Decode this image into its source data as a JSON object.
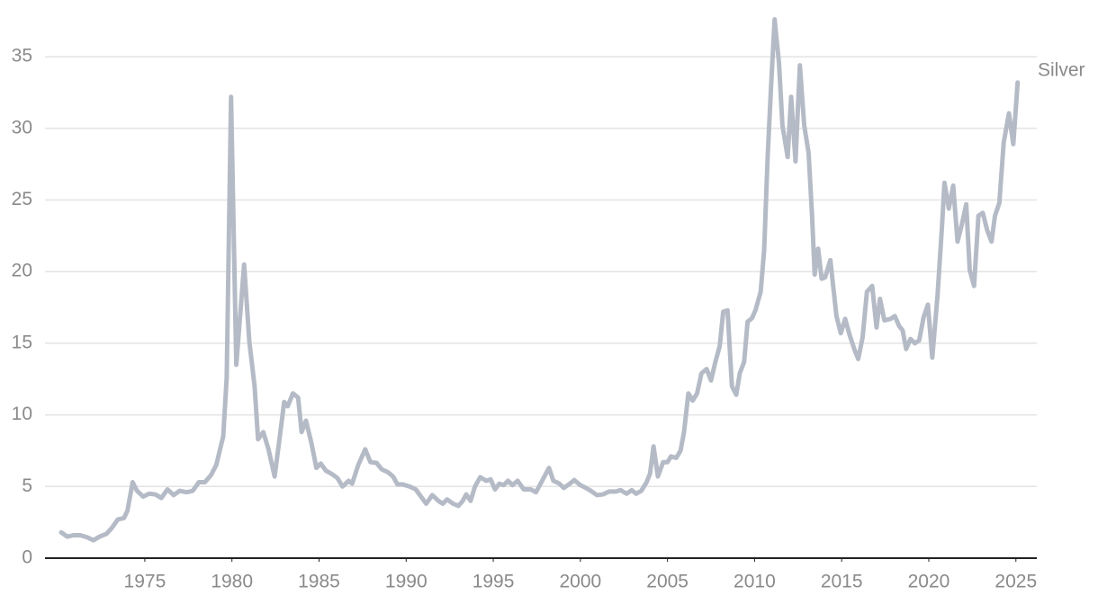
{
  "chart_data": {
    "type": "line",
    "x": [
      1970.2,
      1970.55,
      1970.9,
      1971.3,
      1971.7,
      1972.05,
      1972.4,
      1972.8,
      1973.1,
      1973.45,
      1973.8,
      1974.0,
      1974.3,
      1974.55,
      1974.9,
      1975.25,
      1975.6,
      1975.95,
      1976.3,
      1976.65,
      1977.0,
      1977.4,
      1977.75,
      1978.1,
      1978.45,
      1978.8,
      1979.1,
      1979.5,
      1979.7,
      1979.95,
      1980.25,
      1980.7,
      1981.0,
      1981.3,
      1981.5,
      1981.8,
      1982.1,
      1982.45,
      1982.75,
      1983.0,
      1983.2,
      1983.5,
      1983.8,
      1984.0,
      1984.25,
      1984.55,
      1984.85,
      1985.1,
      1985.4,
      1985.7,
      1986.05,
      1986.35,
      1986.7,
      1986.9,
      1987.25,
      1987.65,
      1987.95,
      1988.3,
      1988.6,
      1988.95,
      1989.25,
      1989.5,
      1989.8,
      1990.2,
      1990.55,
      1990.85,
      1991.15,
      1991.5,
      1991.85,
      1992.1,
      1992.35,
      1992.7,
      1993.0,
      1993.25,
      1993.45,
      1993.7,
      1993.95,
      1994.25,
      1994.6,
      1994.85,
      1995.1,
      1995.35,
      1995.6,
      1995.85,
      1996.1,
      1996.4,
      1996.75,
      1997.15,
      1997.45,
      1997.85,
      1998.2,
      1998.45,
      1998.8,
      1999.05,
      1999.4,
      1999.65,
      2000.0,
      2000.25,
      2000.6,
      2000.95,
      2001.3,
      2001.65,
      2002.05,
      2002.3,
      2002.65,
      2002.95,
      2003.2,
      2003.5,
      2003.8,
      2004.0,
      2004.2,
      2004.45,
      2004.75,
      2005.0,
      2005.2,
      2005.5,
      2005.75,
      2005.95,
      2006.2,
      2006.45,
      2006.7,
      2006.95,
      2007.25,
      2007.5,
      2007.75,
      2008.0,
      2008.2,
      2008.45,
      2008.7,
      2008.95,
      2009.15,
      2009.4,
      2009.6,
      2009.85,
      2010.05,
      2010.35,
      2010.55,
      2010.75,
      2010.95,
      2011.15,
      2011.4,
      2011.6,
      2011.9,
      2012.1,
      2012.35,
      2012.6,
      2012.85,
      2013.1,
      2013.3,
      2013.45,
      2013.65,
      2013.85,
      2014.05,
      2014.35,
      2014.7,
      2014.95,
      2015.2,
      2015.45,
      2015.75,
      2015.95,
      2016.2,
      2016.45,
      2016.75,
      2017.0,
      2017.2,
      2017.45,
      2017.8,
      2018.05,
      2018.3,
      2018.5,
      2018.7,
      2018.95,
      2019.2,
      2019.45,
      2019.7,
      2019.95,
      2020.2,
      2020.5,
      2020.75,
      2020.9,
      2021.15,
      2021.4,
      2021.65,
      2021.9,
      2022.15,
      2022.35,
      2022.6,
      2022.85,
      2023.1,
      2023.35,
      2023.6,
      2023.8,
      2024.05,
      2024.3,
      2024.6,
      2024.85,
      2025.1
    ],
    "series": [
      {
        "name": "Silver",
        "color": "#b5bbc6",
        "values": [
          1.8,
          1.5,
          1.6,
          1.6,
          1.45,
          1.25,
          1.5,
          1.7,
          2.1,
          2.7,
          2.8,
          3.3,
          5.3,
          4.7,
          4.3,
          4.5,
          4.45,
          4.2,
          4.8,
          4.4,
          4.7,
          4.6,
          4.7,
          5.3,
          5.3,
          5.8,
          6.5,
          8.5,
          12.6,
          32.2,
          13.5,
          20.5,
          15.1,
          12.0,
          8.3,
          8.8,
          7.6,
          5.7,
          8.5,
          10.9,
          10.6,
          11.5,
          11.2,
          8.8,
          9.6,
          8.1,
          6.3,
          6.6,
          6.1,
          5.9,
          5.6,
          5.0,
          5.4,
          5.2,
          6.5,
          7.6,
          6.7,
          6.65,
          6.2,
          6.0,
          5.7,
          5.15,
          5.15,
          5.0,
          4.8,
          4.3,
          3.8,
          4.4,
          4.0,
          3.8,
          4.1,
          3.8,
          3.65,
          4.0,
          4.45,
          4.0,
          5.0,
          5.65,
          5.4,
          5.5,
          4.8,
          5.2,
          5.1,
          5.4,
          5.1,
          5.4,
          4.8,
          4.8,
          4.6,
          5.5,
          6.3,
          5.4,
          5.2,
          4.9,
          5.2,
          5.45,
          5.1,
          4.95,
          4.7,
          4.4,
          4.45,
          4.65,
          4.65,
          4.75,
          4.5,
          4.75,
          4.5,
          4.7,
          5.3,
          5.9,
          7.8,
          5.7,
          6.7,
          6.7,
          7.1,
          7.0,
          7.5,
          8.8,
          11.5,
          11.0,
          11.5,
          12.9,
          13.2,
          12.4,
          13.7,
          14.8,
          17.2,
          17.3,
          12.0,
          11.4,
          12.9,
          13.7,
          16.5,
          16.75,
          17.3,
          18.6,
          21.5,
          28.0,
          33.0,
          37.6,
          34.6,
          30.2,
          28.0,
          32.2,
          27.7,
          34.4,
          30.2,
          28.3,
          23.9,
          19.8,
          21.6,
          19.5,
          19.6,
          20.8,
          16.9,
          15.7,
          16.7,
          15.6,
          14.5,
          13.9,
          15.4,
          18.6,
          19.0,
          16.1,
          18.1,
          16.6,
          16.7,
          16.9,
          16.2,
          15.9,
          14.6,
          15.3,
          15.0,
          15.2,
          16.8,
          17.7,
          14.0,
          18.3,
          23.0,
          26.2,
          24.4,
          26.0,
          22.1,
          23.3,
          24.7,
          20.1,
          19.0,
          23.9,
          24.1,
          22.9,
          22.1,
          23.9,
          24.8,
          29.0,
          31.05,
          28.9,
          33.2
        ]
      }
    ],
    "xlim": [
      1969.27,
      2026.2
    ],
    "xticks": [
      1975,
      1980,
      1985,
      1990,
      1995,
      2000,
      2005,
      2010,
      2015,
      2020,
      2025
    ],
    "ylim": [
      0,
      38
    ],
    "yticks": [
      0,
      5,
      10,
      15,
      20,
      25,
      30,
      35
    ],
    "grid": true
  }
}
